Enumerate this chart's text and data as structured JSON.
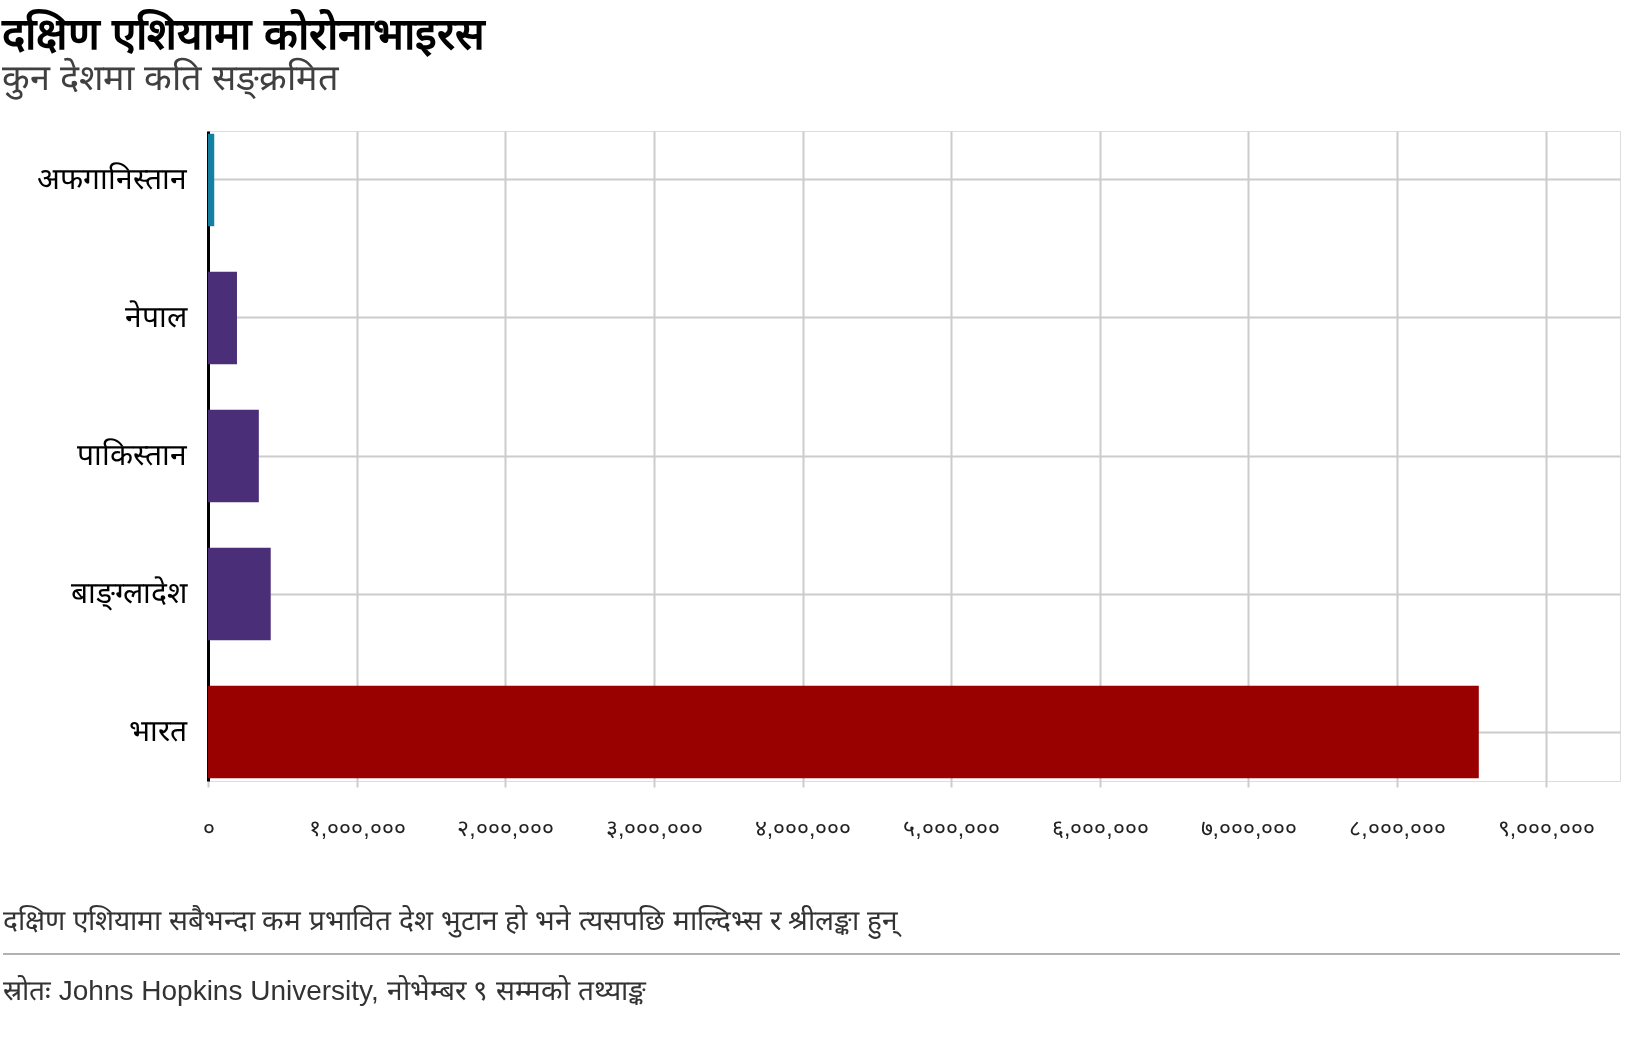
{
  "chart_data": {
    "type": "bar",
    "orientation": "horizontal",
    "title": "दक्षिण एशियामा कोरोनाभाइरस",
    "subtitle": "कुन देशमा कति सङ्क्रमित",
    "categories": [
      "अफगानिस्तान",
      "नेपाल",
      "पाकिस्तान",
      "बाङ्ग्लादेश",
      "भारत"
    ],
    "values": [
      42000,
      195000,
      342000,
      422000,
      8550000
    ],
    "colors": [
      "#1380a1",
      "#4b2e78",
      "#4b2e78",
      "#4b2e78",
      "#990000"
    ],
    "xlim": [
      0,
      9500000
    ],
    "xticks": [
      {
        "value": 0,
        "label": "०"
      },
      {
        "value": 1000000,
        "label": "१,०००,०००"
      },
      {
        "value": 2000000,
        "label": "२,०००,०००"
      },
      {
        "value": 3000000,
        "label": "३,०००,०००"
      },
      {
        "value": 4000000,
        "label": "४,०००,०००"
      },
      {
        "value": 5000000,
        "label": "५,०००,०००"
      },
      {
        "value": 6000000,
        "label": "६,०००,०००"
      },
      {
        "value": 7000000,
        "label": "७,०००,०००"
      },
      {
        "value": 8000000,
        "label": "८,०००,०००"
      },
      {
        "value": 9000000,
        "label": "९,०००,०००"
      }
    ],
    "grid": true,
    "annotations": [
      "दक्षिण एशियामा सबैभन्दा कम प्रभावित देश भुटान हो भने त्यसपछि माल्दिभ्स र श्रीलङ्का हुन्",
      "स्रोतः Johns Hopkins University, नोभेम्बर ९ सम्मको तथ्याङ्क"
    ]
  }
}
